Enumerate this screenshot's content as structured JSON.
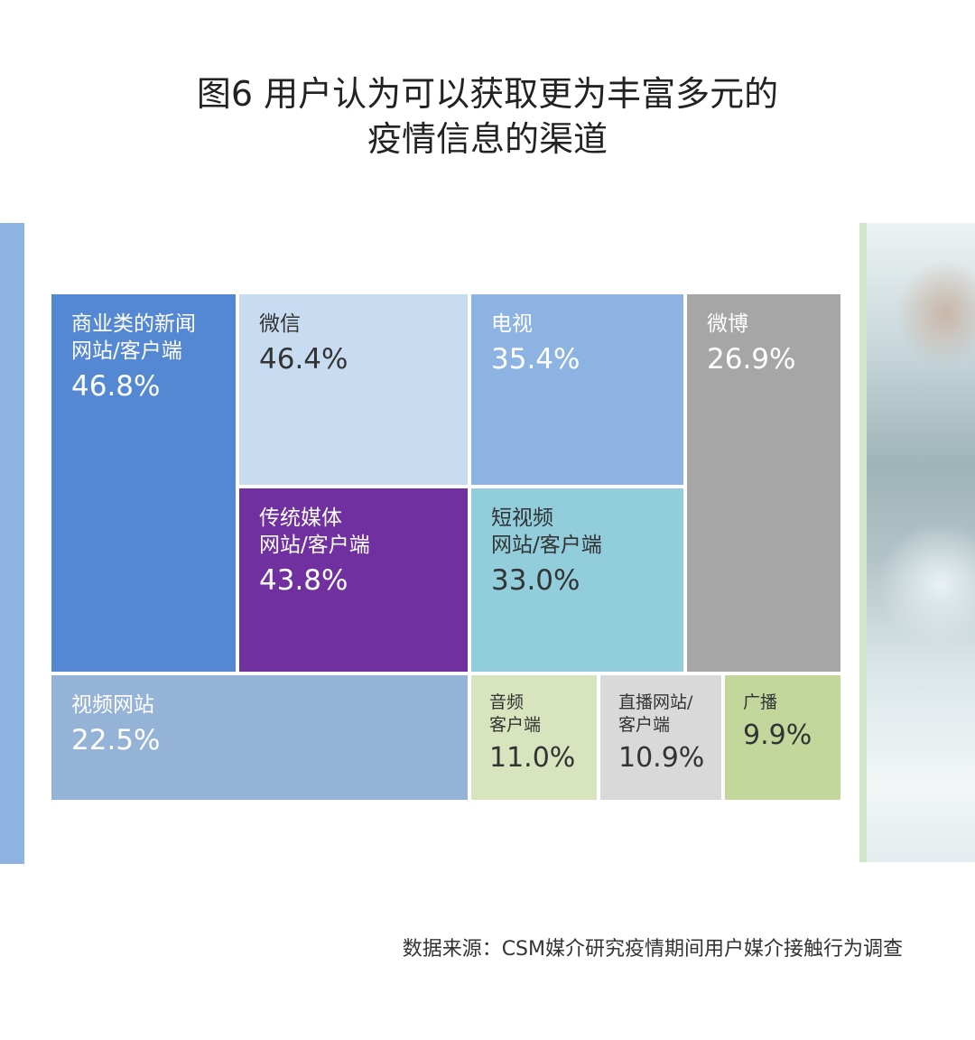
{
  "title_line1": "图6 用户认为可以获取更为丰富多元的",
  "title_line2": "疫情信息的渠道",
  "source": "数据来源：CSM媒介研究疫情期间用户媒介接触行为调查",
  "chart_data": {
    "type": "treemap",
    "title": "图6 用户认为可以获取更为丰富多元的疫情信息的渠道",
    "unit": "%",
    "items": [
      {
        "label": "商业类的新闻\n网站/客户端",
        "value": 46.8,
        "display": "46.8%",
        "color": "#5588d3",
        "text_color": "#ffffff"
      },
      {
        "label": "微信",
        "value": 46.4,
        "display": "46.4%",
        "color": "#c8dcf1",
        "text_color": "#333333"
      },
      {
        "label": "电视",
        "value": 35.4,
        "display": "35.4%",
        "color": "#8db3e2",
        "text_color": "#ffffff"
      },
      {
        "label": "微博",
        "value": 26.9,
        "display": "26.9%",
        "color": "#a6a6a6",
        "text_color": "#ffffff"
      },
      {
        "label": "传统媒体\n网站/客户端",
        "value": 43.8,
        "display": "43.8%",
        "color": "#7030a0",
        "text_color": "#ffffff"
      },
      {
        "label": "短视频\n网站/客户端",
        "value": 33.0,
        "display": "33.0%",
        "color": "#92cddc",
        "text_color": "#333333"
      },
      {
        "label": "视频网站",
        "value": 22.5,
        "display": "22.5%",
        "color": "#95b3d7",
        "text_color": "#ffffff"
      },
      {
        "label": "音频\n客户端",
        "value": 11.0,
        "display": "11.0%",
        "color": "#d7e4bd",
        "text_color": "#333333"
      },
      {
        "label": "直播网站/\n客户端",
        "value": 10.9,
        "display": "10.9%",
        "color": "#d9d9d9",
        "text_color": "#333333"
      },
      {
        "label": "广播",
        "value": 9.9,
        "display": "9.9%",
        "color": "#c3d69b",
        "text_color": "#333333"
      }
    ]
  }
}
